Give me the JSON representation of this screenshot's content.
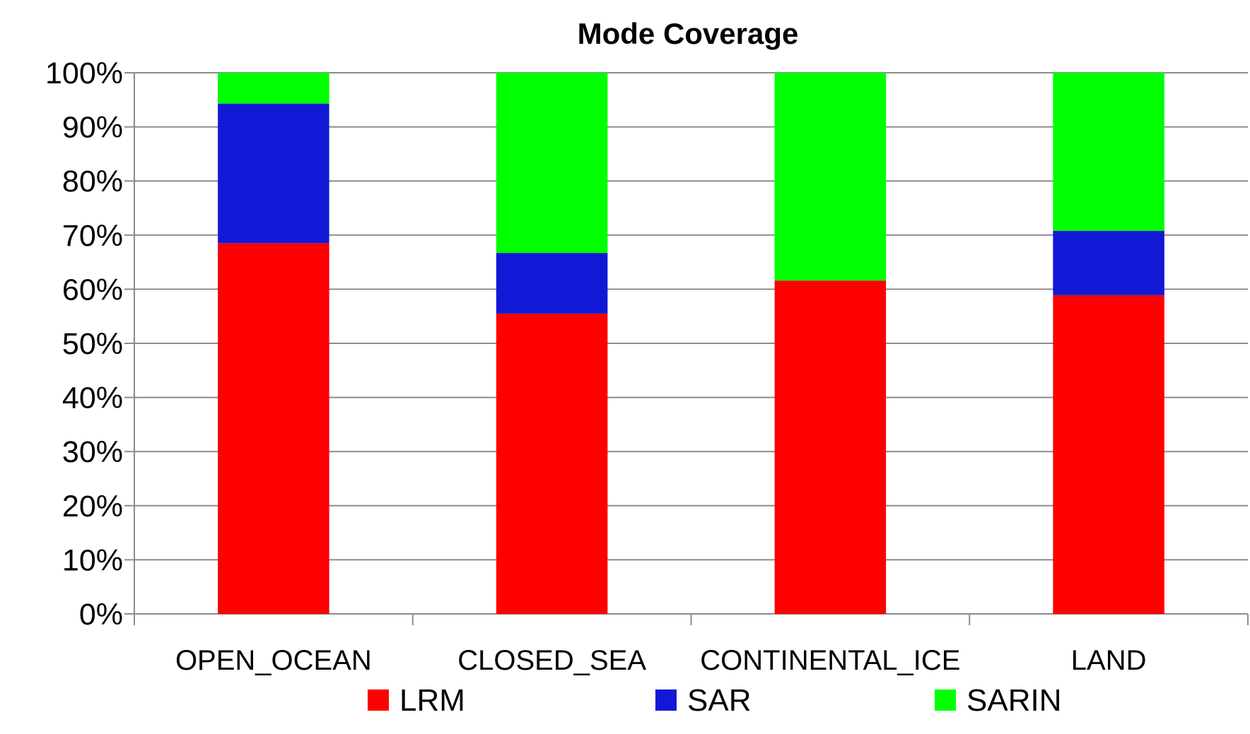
{
  "chart_data": {
    "type": "bar",
    "stacked": true,
    "normalized_percent": true,
    "title": "Mode Coverage",
    "xlabel": "",
    "ylabel": "",
    "ylim": [
      0,
      100
    ],
    "y_tick_labels": [
      "0%",
      "10%",
      "20%",
      "30%",
      "40%",
      "50%",
      "60%",
      "70%",
      "80%",
      "90%",
      "100%"
    ],
    "categories": [
      "OPEN_OCEAN",
      "CLOSED_SEA",
      "CONTINENTAL_ICE",
      "LAND"
    ],
    "series": [
      {
        "name": "LRM",
        "color": "#FF0000",
        "values": [
          68.5,
          55.5,
          61.6,
          58.9
        ]
      },
      {
        "name": "SAR",
        "color": "#1219D6",
        "values": [
          25.8,
          11.2,
          0,
          11.9
        ]
      },
      {
        "name": "SARIN",
        "color": "#00FF00",
        "values": [
          5.7,
          33.3,
          38.4,
          29.2
        ]
      }
    ],
    "grid": true,
    "legend_position": "bottom"
  }
}
